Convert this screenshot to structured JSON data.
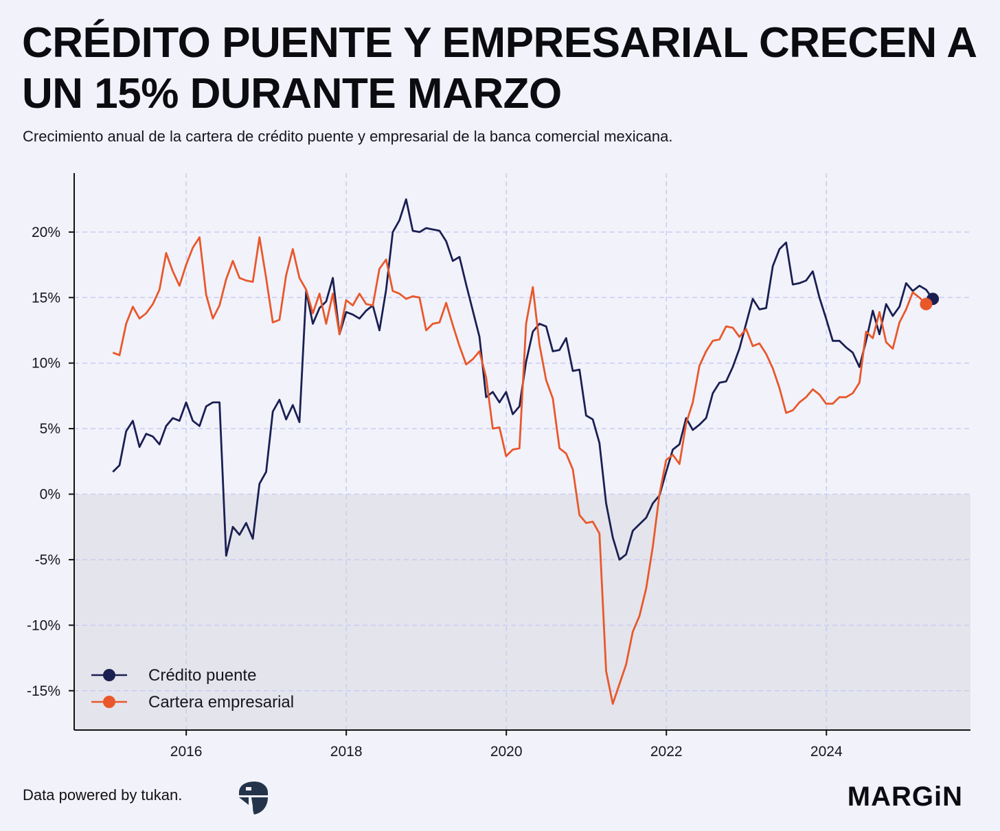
{
  "title": "CRÉDITO PUENTE Y EMPRESARIAL CRECEN A UN 15% DURANTE MARZO",
  "subtitle": "Crecimiento anual de la cartera de crédito puente y empresarial de la banca comercial mexicana.",
  "footer": {
    "source_text": "Data powered by tukan.",
    "brand": "MARGiN",
    "tukan_logo_icon": "tukan-logo-icon"
  },
  "colors": {
    "background": "#f2f2fb",
    "negative_band": "#e4e4ec",
    "grid": "#c9cbf3",
    "axis": "#111111",
    "credito_puente": "#1a1f52",
    "cartera_empresarial": "#e8582a"
  },
  "chart_data": {
    "type": "line",
    "title": "CRÉDITO PUENTE Y EMPRESARIAL CRECEN A UN 15% DURANTE MARZO",
    "xlabel": "",
    "ylabel": "",
    "xlim": [
      2014.6,
      2025.8
    ],
    "ylim": [
      -18.0,
      24.5
    ],
    "x_ticks": [
      2016,
      2018,
      2020,
      2022,
      2024
    ],
    "x_tick_labels": [
      "2016",
      "2018",
      "2020",
      "2022",
      "2024"
    ],
    "y_ticks": [
      -15,
      -10,
      -5,
      0,
      5,
      10,
      15,
      20
    ],
    "y_tick_labels": [
      "-15%",
      "-10%",
      "-5%",
      "0%",
      "5%",
      "10%",
      "15%",
      "20%"
    ],
    "grid": true,
    "negative_shading": true,
    "legend_position": "bottom-left",
    "x_start": 2015.083,
    "x_step": 0.0833,
    "series": [
      {
        "name": "Crédito puente",
        "values": [
          1.7,
          2.2,
          4.8,
          5.6,
          3.6,
          4.6,
          4.4,
          3.8,
          5.2,
          5.8,
          5.6,
          7.0,
          5.6,
          5.2,
          6.7,
          7.0,
          7.0,
          -4.7,
          -2.5,
          -3.1,
          -2.2,
          -3.4,
          0.8,
          1.7,
          6.3,
          7.2,
          5.7,
          6.8,
          5.5,
          15.5,
          13.0,
          14.2,
          14.7,
          16.5,
          12.2,
          13.9,
          13.7,
          13.4,
          14.0,
          14.4,
          12.5,
          15.6,
          20.0,
          20.9,
          22.5,
          20.1,
          20.0,
          20.3,
          20.2,
          20.1,
          19.3,
          17.8,
          18.1,
          16.0,
          14.0,
          12.0,
          7.4,
          7.8,
          7.0,
          7.8,
          6.1,
          6.7,
          10.1,
          12.4,
          13.0,
          12.8,
          10.9,
          11.0,
          11.9,
          9.4,
          9.5,
          6.0,
          5.7,
          3.9,
          -0.7,
          -3.3,
          -5.0,
          -4.6,
          -2.8,
          -2.3,
          -1.8,
          -0.7,
          -0.1,
          1.7,
          3.4,
          3.8,
          5.8,
          4.9,
          5.3,
          5.8,
          7.7,
          8.5,
          8.6,
          9.7,
          11.1,
          13.0,
          14.9,
          14.1,
          14.2,
          17.4,
          18.7,
          19.2,
          16.0,
          16.1,
          16.3,
          17.0,
          15.0,
          13.4,
          11.7,
          11.7,
          11.2,
          10.8,
          9.7,
          11.7,
          14.0,
          12.2,
          14.5,
          13.6,
          14.3,
          16.1,
          15.5,
          15.9,
          15.6,
          14.9
        ]
      },
      {
        "name": "Cartera empresarial",
        "values": [
          10.8,
          10.6,
          13.0,
          14.3,
          13.4,
          13.8,
          14.5,
          15.6,
          18.4,
          17.0,
          15.9,
          17.5,
          18.8,
          19.6,
          15.2,
          13.4,
          14.4,
          16.4,
          17.8,
          16.5,
          16.3,
          16.2,
          19.6,
          16.5,
          13.1,
          13.3,
          16.7,
          18.7,
          16.5,
          15.6,
          13.8,
          15.3,
          13.0,
          15.3,
          12.2,
          14.8,
          14.4,
          15.3,
          14.5,
          14.4,
          17.2,
          17.9,
          15.5,
          15.3,
          14.9,
          15.1,
          15.0,
          12.5,
          13.0,
          13.1,
          14.6,
          12.9,
          11.3,
          9.9,
          10.3,
          10.9,
          8.9,
          5.0,
          5.1,
          2.9,
          3.4,
          3.5,
          13.0,
          15.8,
          11.4,
          8.7,
          7.3,
          3.5,
          3.1,
          1.9,
          -1.6,
          -2.2,
          -2.1,
          -3.0,
          -13.5,
          -16.0,
          -14.5,
          -13.0,
          -10.5,
          -9.3,
          -7.2,
          -4.0,
          0.0,
          2.6,
          3.0,
          2.3,
          5.4,
          7.0,
          9.8,
          10.9,
          11.7,
          11.8,
          12.8,
          12.7,
          12.0,
          12.6,
          11.3,
          11.5,
          10.7,
          9.6,
          8.1,
          6.2,
          6.4,
          7.0,
          7.4,
          8.0,
          7.6,
          6.9,
          6.9,
          7.4,
          7.4,
          7.7,
          8.5,
          12.4,
          11.9,
          13.9,
          11.6,
          11.1,
          13.1,
          14.1,
          15.4,
          15.0,
          14.5
        ]
      }
    ]
  }
}
